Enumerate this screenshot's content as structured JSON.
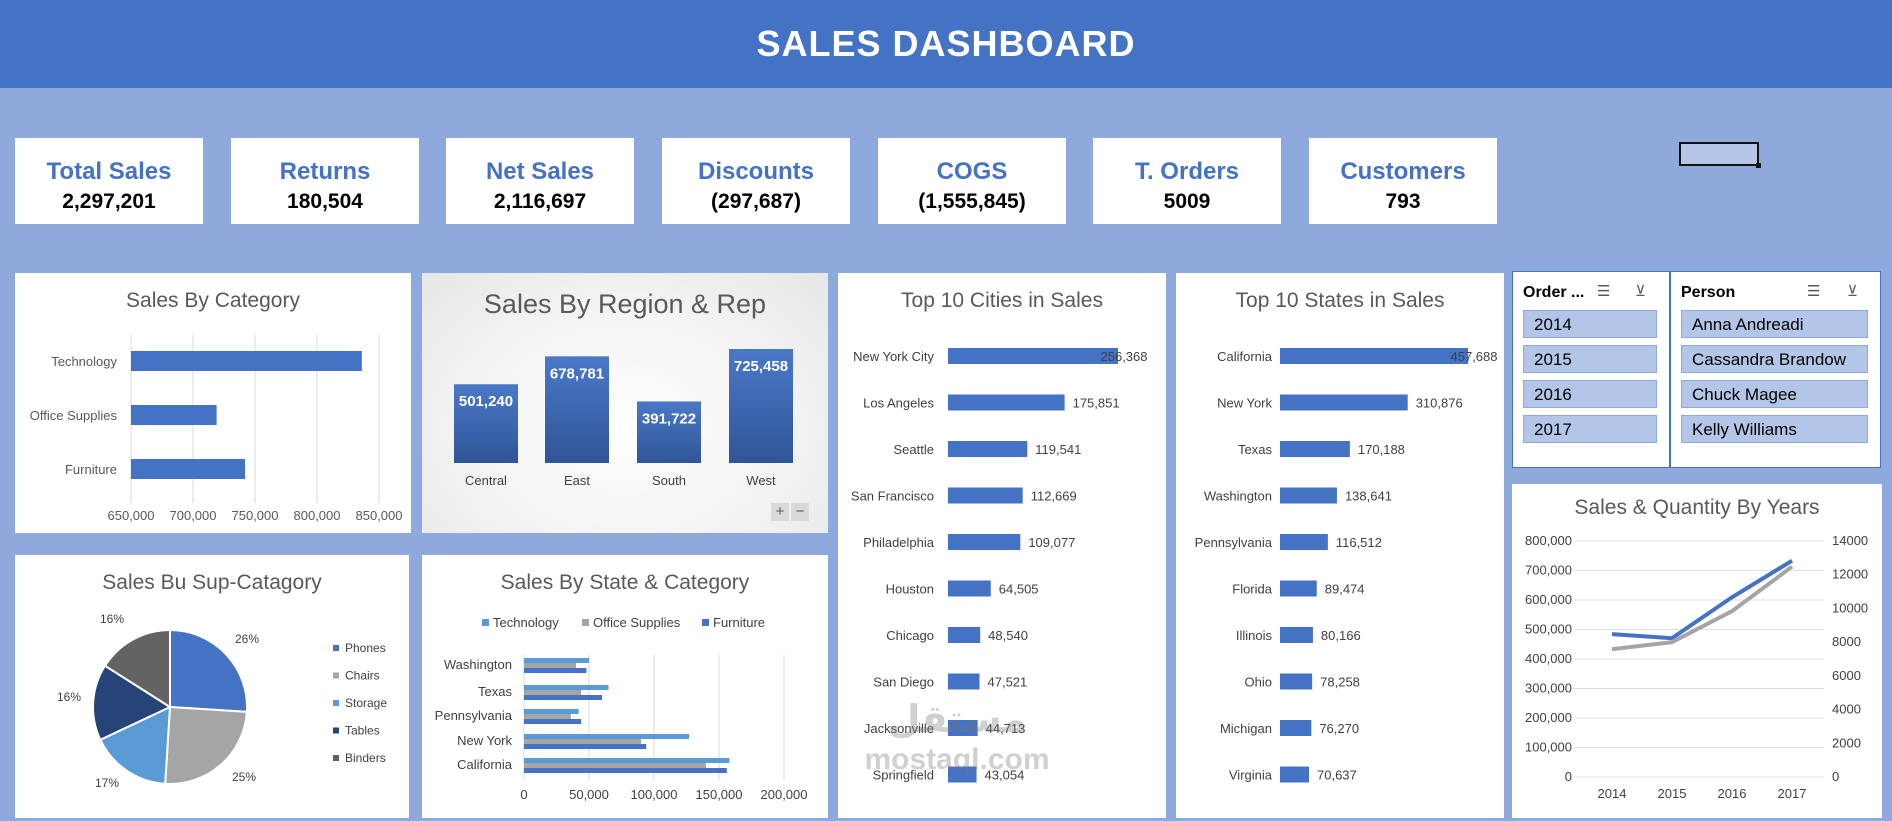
{
  "header": {
    "title": "SALES DASHBOARD"
  },
  "kpis": [
    {
      "label": "Total Sales",
      "value": "2,297,201"
    },
    {
      "label": "Returns",
      "value": "180,504"
    },
    {
      "label": "Net Sales",
      "value": "2,116,697"
    },
    {
      "label": "Discounts",
      "value": "(297,687)"
    },
    {
      "label": "COGS",
      "value": "(1,555,845)"
    },
    {
      "label": "T. Orders",
      "value": "5009"
    },
    {
      "label": "Customers",
      "value": "793"
    }
  ],
  "slicers": {
    "order": {
      "title": "Order ...",
      "items": [
        "2014",
        "2015",
        "2016",
        "2017"
      ]
    },
    "person": {
      "title": "Person",
      "items": [
        "Anna Andreadi",
        "Cassandra Brandow",
        "Chuck Magee",
        "Kelly Williams"
      ]
    }
  },
  "zoom": {
    "plus": "+",
    "minus": "−"
  },
  "watermark": {
    "line1": "مستقل",
    "line2": "mostaql.com"
  },
  "colors": {
    "primary": "#4472C4",
    "gray": "#A5A5A5",
    "light_blue": "#5B9BD5",
    "dark_blue": "#264478",
    "dark_gray": "#636363",
    "background": "#8EA9DB"
  },
  "chart_data": [
    {
      "id": "category",
      "type": "bar",
      "title": "Sales By Category",
      "categories": [
        "Technology",
        "Office Supplies",
        "Furniture"
      ],
      "values": [
        836154,
        719047,
        741999
      ],
      "xlim": [
        650000,
        850000
      ],
      "xticks": [
        "650,000",
        "700,000",
        "750,000",
        "800,000",
        "850,000"
      ]
    },
    {
      "id": "region",
      "type": "bar",
      "title": "Sales By Region & Rep",
      "categories": [
        "Central",
        "East",
        "South",
        "West"
      ],
      "values": [
        501240,
        678781,
        391722,
        725458
      ],
      "labels": [
        "501,240",
        "678,781",
        "391,722",
        "725,458"
      ]
    },
    {
      "id": "cities",
      "type": "bar",
      "title": "Top 10 Cities  in Sales",
      "categories": [
        "New York City",
        "Los Angeles",
        "Seattle",
        "San Francisco",
        "Philadelphia",
        "Houston",
        "Chicago",
        "San Diego",
        "Jacksonville",
        "Springfield"
      ],
      "values": [
        256368,
        175851,
        119541,
        112669,
        109077,
        64505,
        48540,
        47521,
        44713,
        43054
      ],
      "labels": [
        "256,368",
        "175,851",
        "119,541",
        "112,669",
        "109,077",
        "64,505",
        "48,540",
        "47,521",
        "44,713",
        "43,054"
      ]
    },
    {
      "id": "states",
      "type": "bar",
      "title": "Top 10 States in Sales",
      "categories": [
        "California",
        "New York",
        "Texas",
        "Washington",
        "Pennsylvania",
        "Florida",
        "Illinois",
        "Ohio",
        "Michigan",
        "Virginia"
      ],
      "values": [
        457688,
        310876,
        170188,
        138641,
        116512,
        89474,
        80166,
        78258,
        76270,
        70637
      ],
      "labels": [
        "457,688",
        "310,876",
        "170,188",
        "138,641",
        "116,512",
        "89,474",
        "80,166",
        "78,258",
        "76,270",
        "70,637"
      ]
    },
    {
      "id": "subcat",
      "type": "pie",
      "title": "Sales Bu Sup-Catagory",
      "categories": [
        "Phones",
        "Chairs",
        "Storage",
        "Tables",
        "Binders"
      ],
      "values": [
        26,
        25,
        17,
        16,
        16
      ],
      "labels": [
        "26%",
        "25%",
        "17%",
        "16%",
        "16%"
      ]
    },
    {
      "id": "statecat",
      "type": "bar",
      "title": "Sales By State & Category",
      "categories": [
        "Washington",
        "Texas",
        "Pennsylvania",
        "New York",
        "California"
      ],
      "series": [
        {
          "name": "Technology",
          "values": [
            50000,
            65000,
            42000,
            127000,
            158000
          ]
        },
        {
          "name": "Office Supplies",
          "values": [
            40000,
            44000,
            36000,
            90000,
            140000
          ]
        },
        {
          "name": "Furniture",
          "values": [
            48000,
            60000,
            44000,
            94000,
            156000
          ]
        }
      ],
      "xlim": [
        0,
        200000
      ],
      "xticks": [
        "0",
        "50,000",
        "100,000",
        "150,000",
        "200,000"
      ]
    },
    {
      "id": "years",
      "type": "line",
      "title": "Sales & Quantity By Years",
      "x": [
        "2014",
        "2015",
        "2016",
        "2017"
      ],
      "series": [
        {
          "name": "Sales",
          "axis": "left",
          "values": [
            484247,
            470533,
            609206,
            733215
          ]
        },
        {
          "name": "Quantity",
          "axis": "right",
          "values": [
            7581,
            8000,
            9837,
            12476
          ]
        }
      ],
      "ylim_left": [
        0,
        800000
      ],
      "ylim_right": [
        0,
        14000
      ],
      "yticks_left": [
        "0",
        "100,000",
        "200,000",
        "300,000",
        "400,000",
        "500,000",
        "600,000",
        "700,000",
        "800,000"
      ],
      "yticks_right": [
        "0",
        "2000",
        "4000",
        "6000",
        "8000",
        "10000",
        "12000",
        "14000"
      ]
    }
  ]
}
